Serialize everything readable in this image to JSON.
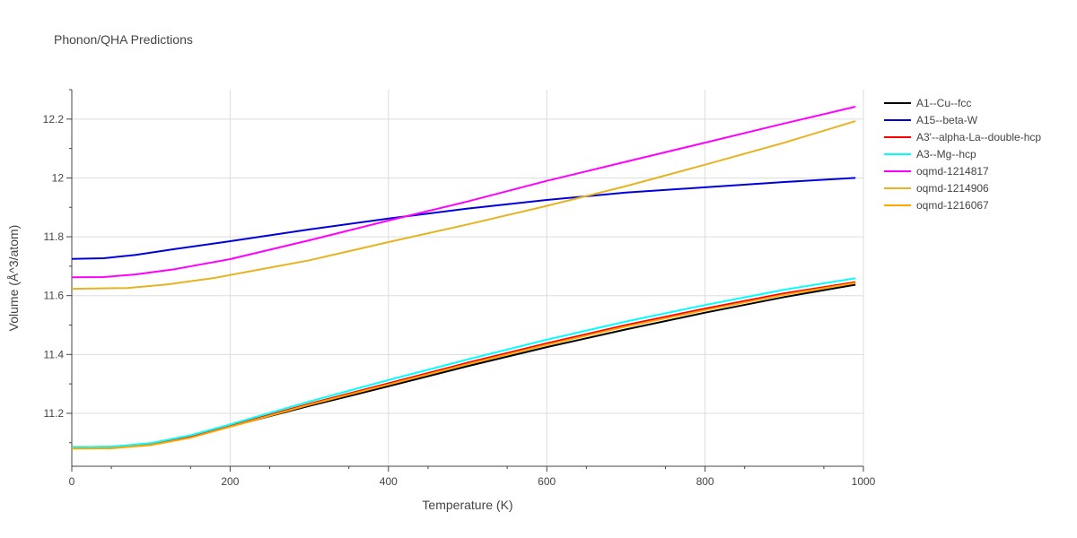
{
  "chart_data": {
    "type": "line",
    "title": "Phonon/QHA Predictions",
    "xlabel": "Temperature (K)",
    "ylabel": "Volume (Å^3/atom)",
    "xlim": [
      0,
      1000
    ],
    "ylim": [
      11.02,
      12.3
    ],
    "xticks": [
      0,
      200,
      400,
      600,
      800,
      1000
    ],
    "xtick_labels": [
      "0",
      "200",
      "400",
      "600",
      "800",
      "1000"
    ],
    "yticks": [
      11.2,
      11.4,
      11.6,
      11.8,
      12.0,
      12.2
    ],
    "ytick_labels": [
      "11.2",
      "11.4",
      "11.6",
      "11.8",
      "12",
      "12.2"
    ],
    "grid": true,
    "legend_position": "right",
    "series": [
      {
        "name": "A1--Cu--fcc",
        "color": "#000000",
        "x": [
          0,
          50,
          100,
          150,
          200,
          300,
          400,
          500,
          600,
          700,
          800,
          900,
          990
        ],
        "y": [
          11.085,
          11.086,
          11.097,
          11.12,
          11.155,
          11.225,
          11.292,
          11.36,
          11.425,
          11.485,
          11.542,
          11.595,
          11.637
        ]
      },
      {
        "name": "A15--beta-W",
        "color": "#0000dd",
        "x": [
          0,
          40,
          80,
          130,
          200,
          300,
          400,
          500,
          600,
          700,
          800,
          900,
          990
        ],
        "y": [
          11.725,
          11.727,
          11.738,
          11.758,
          11.785,
          11.825,
          11.862,
          11.896,
          11.925,
          11.95,
          11.968,
          11.986,
          12.0
        ]
      },
      {
        "name": "A3'--alpha-La--double-hcp",
        "color": "#ff0000",
        "x": [
          0,
          50,
          100,
          150,
          200,
          300,
          400,
          500,
          600,
          700,
          800,
          900,
          990
        ],
        "y": [
          11.083,
          11.084,
          11.096,
          11.12,
          11.157,
          11.232,
          11.302,
          11.372,
          11.438,
          11.5,
          11.556,
          11.608,
          11.646
        ]
      },
      {
        "name": "A3--Mg--hcp",
        "color": "#00ffff",
        "x": [
          0,
          50,
          100,
          150,
          200,
          300,
          400,
          500,
          600,
          700,
          800,
          900,
          990
        ],
        "y": [
          11.085,
          11.086,
          11.099,
          11.125,
          11.162,
          11.24,
          11.313,
          11.383,
          11.45,
          11.512,
          11.568,
          11.62,
          11.659
        ]
      },
      {
        "name": "oqmd-1214817",
        "color": "#ff00ff",
        "x": [
          0,
          40,
          80,
          130,
          200,
          300,
          400,
          500,
          600,
          700,
          800,
          900,
          990
        ],
        "y": [
          11.662,
          11.663,
          11.672,
          11.69,
          11.724,
          11.788,
          11.855,
          11.92,
          11.99,
          12.055,
          12.12,
          12.185,
          12.242
        ]
      },
      {
        "name": "oqmd-1214906",
        "color": "#e6b422",
        "x": [
          0,
          70,
          120,
          180,
          250,
          300,
          400,
          500,
          600,
          700,
          800,
          900,
          990
        ],
        "y": [
          11.623,
          11.626,
          11.638,
          11.66,
          11.695,
          11.72,
          11.782,
          11.842,
          11.905,
          11.972,
          12.045,
          12.12,
          12.193
        ]
      },
      {
        "name": "oqmd-1216067",
        "color": "#ffa500",
        "x": [
          0,
          50,
          100,
          150,
          200,
          300,
          400,
          500,
          600,
          700,
          800,
          900,
          990
        ],
        "y": [
          11.08,
          11.081,
          11.092,
          11.117,
          11.154,
          11.229,
          11.298,
          11.367,
          11.433,
          11.495,
          11.551,
          11.603,
          11.643
        ]
      }
    ]
  }
}
